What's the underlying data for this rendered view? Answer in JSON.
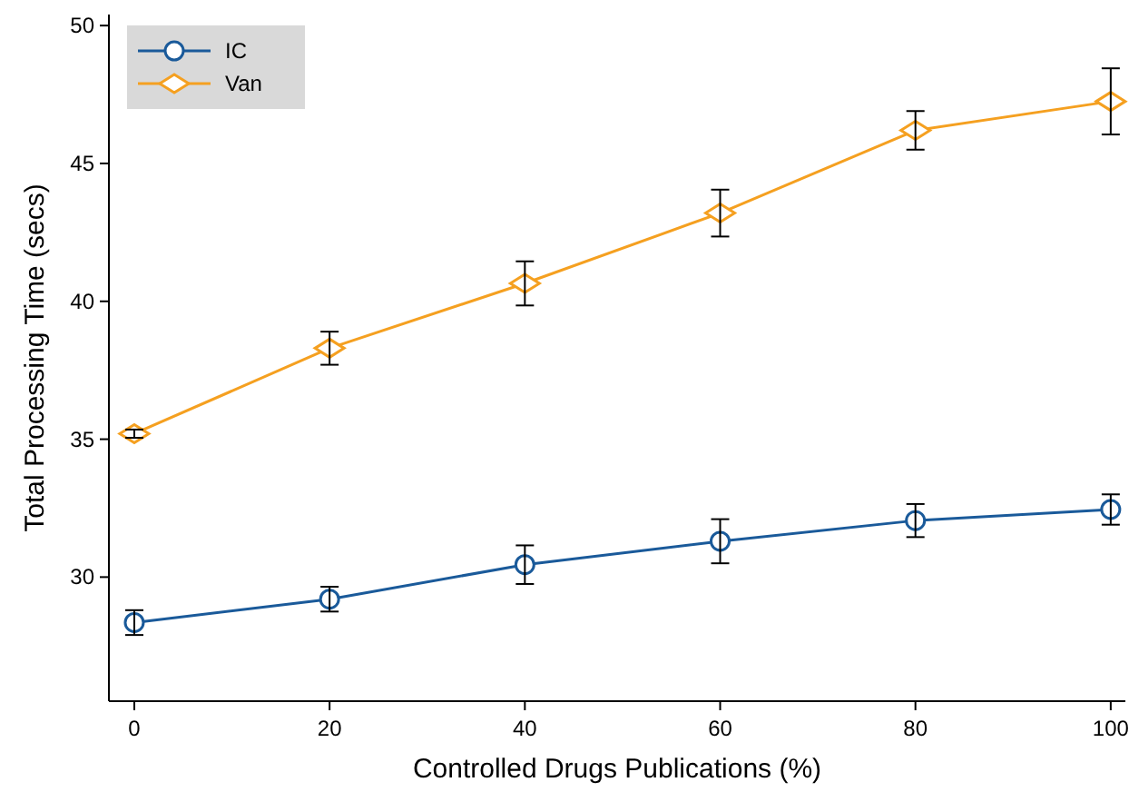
{
  "chart_data": {
    "type": "line",
    "xlabel": "Controlled Drugs Publications (%)",
    "ylabel": "Total Processing Time (secs)",
    "x": [
      0,
      20,
      40,
      60,
      80,
      100
    ],
    "xlim": [
      -2.6,
      101.5
    ],
    "ylim": [
      25.5,
      50.4
    ],
    "xticks": [
      0,
      20,
      40,
      60,
      80,
      100
    ],
    "yticks": [
      30,
      35,
      40,
      45,
      50
    ],
    "legend": "top left",
    "grid": false,
    "series": [
      {
        "name": "IC",
        "color": "#1a5a9a",
        "marker": "circle",
        "values": [
          28.35,
          29.2,
          30.45,
          31.3,
          32.05,
          32.45
        ],
        "errors": [
          0.45,
          0.45,
          0.7,
          0.8,
          0.6,
          0.55
        ]
      },
      {
        "name": "Van",
        "color": "#f5a020",
        "marker": "diamond",
        "values": [
          35.2,
          38.3,
          40.65,
          43.2,
          46.2,
          47.25
        ],
        "errors": [
          0.15,
          0.6,
          0.8,
          0.85,
          0.7,
          1.2
        ]
      }
    ]
  }
}
